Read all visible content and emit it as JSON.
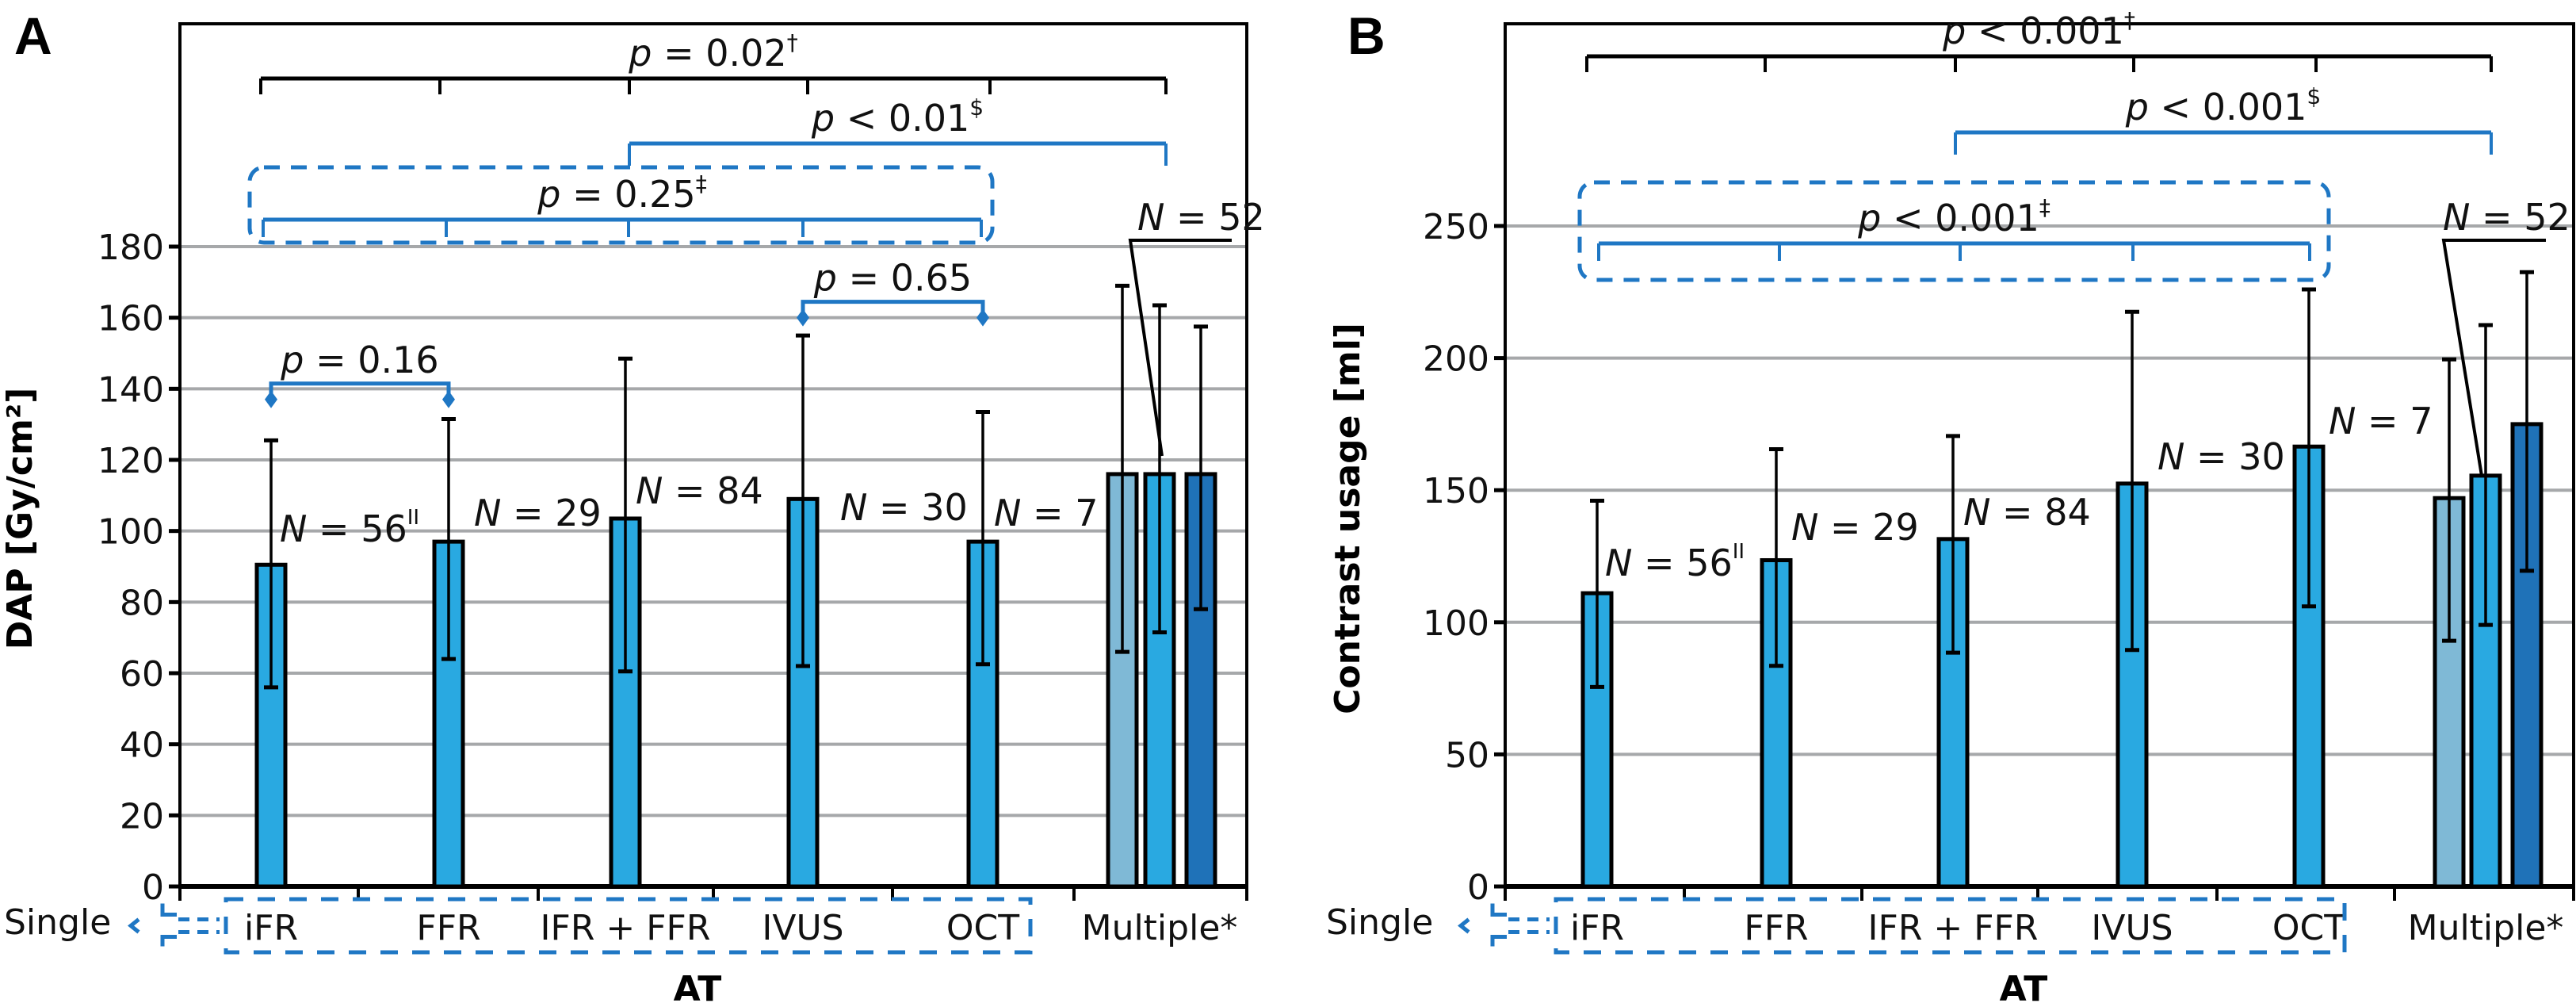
{
  "colors": {
    "single": "#29a9e1",
    "multiple_light": "#7fb9d6",
    "multiple_mid": "#29a9e1",
    "multiple_dark": "#1f72b8",
    "bracket_blue": "#1f77c4",
    "bracket_black": "#000000",
    "grid": "#a6a8aa"
  },
  "legend": {
    "single_label": "Single"
  },
  "chart_data": [
    {
      "panel": "A",
      "type": "bar",
      "ylabel": "DAP [Gy/cm²]",
      "xlabel": "AT",
      "ylim": [
        0,
        180
      ],
      "yticks": [
        0,
        20,
        40,
        60,
        80,
        100,
        120,
        140,
        160,
        180
      ],
      "grid": true,
      "categories": [
        "iFR",
        "FFR",
        "IFR + FFR",
        "IVUS",
        "OCT",
        "Multiple*"
      ],
      "single_group": [
        "iFR",
        "FFR",
        "IFR + FFR",
        "IVUS",
        "OCT"
      ],
      "series": [
        {
          "category": "iFR",
          "value": 90.5,
          "err_low": 56,
          "err_high": 125.5,
          "color_key": "single",
          "n_label": "N = 56",
          "n_sup": "II"
        },
        {
          "category": "FFR",
          "value": 97,
          "err_low": 64,
          "err_high": 131.5,
          "color_key": "single",
          "n_label": "N = 29",
          "n_sup": ""
        },
        {
          "category": "IFR + FFR",
          "value": 103.5,
          "err_low": 60.5,
          "err_high": 148.5,
          "color_key": "single",
          "n_label": "N = 84",
          "n_sup": ""
        },
        {
          "category": "IVUS",
          "value": 109,
          "err_low": 62,
          "err_high": 155,
          "color_key": "single",
          "n_label": "N = 30",
          "n_sup": ""
        },
        {
          "category": "OCT",
          "value": 97,
          "err_low": 62.5,
          "err_high": 133.5,
          "color_key": "single",
          "n_label": "N = 7",
          "n_sup": ""
        }
      ],
      "multiple": {
        "n_label": "N = 52",
        "bars": [
          {
            "value": 116,
            "err_low": 66,
            "err_high": 169,
            "color_key": "multiple_light"
          },
          {
            "value": 116,
            "err_low": 71.5,
            "err_high": 163.5,
            "color_key": "multiple_mid"
          },
          {
            "value": 116,
            "err_low": 78,
            "err_high": 157.5,
            "color_key": "multiple_dark"
          }
        ]
      },
      "comparisons": [
        {
          "label": "p = 0.02",
          "sup": "†",
          "style": "black",
          "from": 0,
          "to": 5,
          "ticks": [
            0,
            1,
            2,
            3,
            4,
            5
          ]
        },
        {
          "label": "p < 0.01",
          "sup": "$",
          "style": "blue",
          "from": 2,
          "to": 5,
          "ticks": [
            2,
            5
          ]
        },
        {
          "label": "p = 0.25",
          "sup": "‡",
          "style": "blue-boxed",
          "from": 0,
          "to": 4,
          "ticks": [
            0,
            1,
            2,
            3,
            4
          ]
        },
        {
          "label": "p = 0.65",
          "sup": "",
          "style": "blue-diamond",
          "from": 3,
          "to": 4,
          "at_value": 160
        },
        {
          "label": "p = 0.16",
          "sup": "",
          "style": "blue-diamond",
          "from": 0,
          "to": 1,
          "at_value": 137
        }
      ]
    },
    {
      "panel": "B",
      "type": "bar",
      "ylabel": "Contrast usage [ml]",
      "xlabel": "AT",
      "ylim": [
        0,
        250
      ],
      "yticks": [
        0,
        50,
        100,
        150,
        200,
        250
      ],
      "grid": true,
      "categories": [
        "iFR",
        "FFR",
        "IFR + FFR",
        "IVUS",
        "OCT",
        "Multiple*"
      ],
      "single_group": [
        "iFR",
        "FFR",
        "IFR + FFR",
        "IVUS",
        "OCT"
      ],
      "series": [
        {
          "category": "iFR",
          "value": 111,
          "err_low": 75.5,
          "err_high": 146,
          "color_key": "single",
          "n_label": "N = 56",
          "n_sup": "II"
        },
        {
          "category": "FFR",
          "value": 123.5,
          "err_low": 83.5,
          "err_high": 165.5,
          "color_key": "single",
          "n_label": "N = 29",
          "n_sup": ""
        },
        {
          "category": "IFR + FFR",
          "value": 131.5,
          "err_low": 88.5,
          "err_high": 170.5,
          "color_key": "single",
          "n_label": "N = 84",
          "n_sup": ""
        },
        {
          "category": "IVUS",
          "value": 152.5,
          "err_low": 89.5,
          "err_high": 217.5,
          "color_key": "single",
          "n_label": "N = 30",
          "n_sup": ""
        },
        {
          "category": "OCT",
          "value": 166.5,
          "err_low": 106,
          "err_high": 226,
          "color_key": "single",
          "n_label": "N = 7",
          "n_sup": ""
        }
      ],
      "multiple": {
        "n_label": "N = 52",
        "bars": [
          {
            "value": 147,
            "err_low": 93,
            "err_high": 199.5,
            "color_key": "multiple_light"
          },
          {
            "value": 155.5,
            "err_low": 99,
            "err_high": 212.5,
            "color_key": "multiple_mid"
          },
          {
            "value": 175,
            "err_low": 119.5,
            "err_high": 232.5,
            "color_key": "multiple_dark"
          }
        ]
      },
      "comparisons": [
        {
          "label": "p < 0.001",
          "sup": "†",
          "style": "black",
          "from": 0,
          "to": 5,
          "ticks": [
            0,
            1,
            2,
            3,
            4,
            5
          ]
        },
        {
          "label": "p < 0.001",
          "sup": "$",
          "style": "blue",
          "from": 2,
          "to": 5,
          "ticks": [
            2,
            5
          ]
        },
        {
          "label": "p < 0.001",
          "sup": "‡",
          "style": "blue-boxed",
          "from": 0,
          "to": 4,
          "ticks": [
            0,
            1,
            2,
            3,
            4
          ]
        }
      ]
    }
  ]
}
